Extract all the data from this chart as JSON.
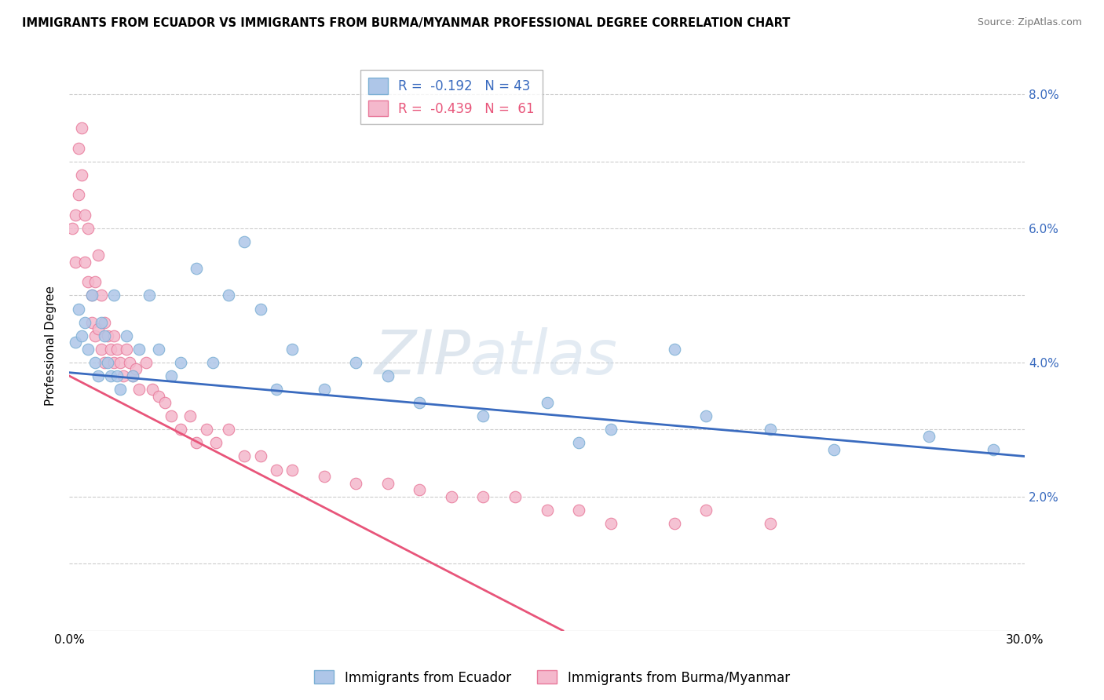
{
  "title": "IMMIGRANTS FROM ECUADOR VS IMMIGRANTS FROM BURMA/MYANMAR PROFESSIONAL DEGREE CORRELATION CHART",
  "source": "Source: ZipAtlas.com",
  "ylabel": "Professional Degree",
  "xlim": [
    0.0,
    0.3
  ],
  "ylim": [
    0.0,
    0.085
  ],
  "xticks": [
    0.0,
    0.05,
    0.1,
    0.15,
    0.2,
    0.25,
    0.3
  ],
  "xticklabels": [
    "0.0%",
    "",
    "",
    "",
    "",
    "",
    "30.0%"
  ],
  "yticks": [
    0.0,
    0.01,
    0.02,
    0.03,
    0.04,
    0.05,
    0.06,
    0.07,
    0.08
  ],
  "yticklabels_right": [
    "",
    "",
    "2.0%",
    "",
    "4.0%",
    "",
    "6.0%",
    "",
    "8.0%"
  ],
  "ecuador_color": "#aec6e8",
  "burma_color": "#f4b8cc",
  "ecuador_edge": "#7bafd4",
  "burma_edge": "#e8799a",
  "trendline_ecuador_color": "#3a6bbf",
  "trendline_burma_color": "#e8557a",
  "watermark": "ZIPatlas",
  "legend_ecuador_label": "R =  -0.192   N = 43",
  "legend_burma_label": "R =  -0.439   N =  61",
  "ecuador_R": -0.192,
  "burma_R": -0.439,
  "ecuador_scatter_x": [
    0.002,
    0.003,
    0.004,
    0.005,
    0.006,
    0.007,
    0.008,
    0.009,
    0.01,
    0.011,
    0.012,
    0.013,
    0.014,
    0.015,
    0.016,
    0.018,
    0.02,
    0.022,
    0.025,
    0.028,
    0.032,
    0.035,
    0.04,
    0.045,
    0.05,
    0.055,
    0.06,
    0.065,
    0.07,
    0.08,
    0.09,
    0.1,
    0.11,
    0.13,
    0.15,
    0.16,
    0.17,
    0.19,
    0.2,
    0.22,
    0.24,
    0.27,
    0.29
  ],
  "ecuador_scatter_y": [
    0.043,
    0.048,
    0.044,
    0.046,
    0.042,
    0.05,
    0.04,
    0.038,
    0.046,
    0.044,
    0.04,
    0.038,
    0.05,
    0.038,
    0.036,
    0.044,
    0.038,
    0.042,
    0.05,
    0.042,
    0.038,
    0.04,
    0.054,
    0.04,
    0.05,
    0.058,
    0.048,
    0.036,
    0.042,
    0.036,
    0.04,
    0.038,
    0.034,
    0.032,
    0.034,
    0.028,
    0.03,
    0.042,
    0.032,
    0.03,
    0.027,
    0.029,
    0.027
  ],
  "burma_scatter_x": [
    0.001,
    0.002,
    0.002,
    0.003,
    0.003,
    0.004,
    0.004,
    0.005,
    0.005,
    0.006,
    0.006,
    0.007,
    0.007,
    0.008,
    0.008,
    0.009,
    0.009,
    0.01,
    0.01,
    0.011,
    0.011,
    0.012,
    0.013,
    0.014,
    0.014,
    0.015,
    0.016,
    0.017,
    0.018,
    0.019,
    0.02,
    0.021,
    0.022,
    0.024,
    0.026,
    0.028,
    0.03,
    0.032,
    0.035,
    0.038,
    0.04,
    0.043,
    0.046,
    0.05,
    0.055,
    0.06,
    0.065,
    0.07,
    0.08,
    0.09,
    0.1,
    0.11,
    0.12,
    0.13,
    0.14,
    0.15,
    0.16,
    0.17,
    0.19,
    0.2,
    0.22
  ],
  "burma_scatter_y": [
    0.06,
    0.062,
    0.055,
    0.072,
    0.065,
    0.075,
    0.068,
    0.062,
    0.055,
    0.052,
    0.06,
    0.05,
    0.046,
    0.052,
    0.044,
    0.056,
    0.045,
    0.05,
    0.042,
    0.046,
    0.04,
    0.044,
    0.042,
    0.04,
    0.044,
    0.042,
    0.04,
    0.038,
    0.042,
    0.04,
    0.038,
    0.039,
    0.036,
    0.04,
    0.036,
    0.035,
    0.034,
    0.032,
    0.03,
    0.032,
    0.028,
    0.03,
    0.028,
    0.03,
    0.026,
    0.026,
    0.024,
    0.024,
    0.023,
    0.022,
    0.022,
    0.021,
    0.02,
    0.02,
    0.02,
    0.018,
    0.018,
    0.016,
    0.016,
    0.018,
    0.016
  ],
  "ecuador_trend_x": [
    0.0,
    0.3
  ],
  "ecuador_trend_y": [
    0.0385,
    0.026
  ],
  "burma_trend_x": [
    0.0,
    0.155
  ],
  "burma_trend_y": [
    0.038,
    0.0
  ]
}
